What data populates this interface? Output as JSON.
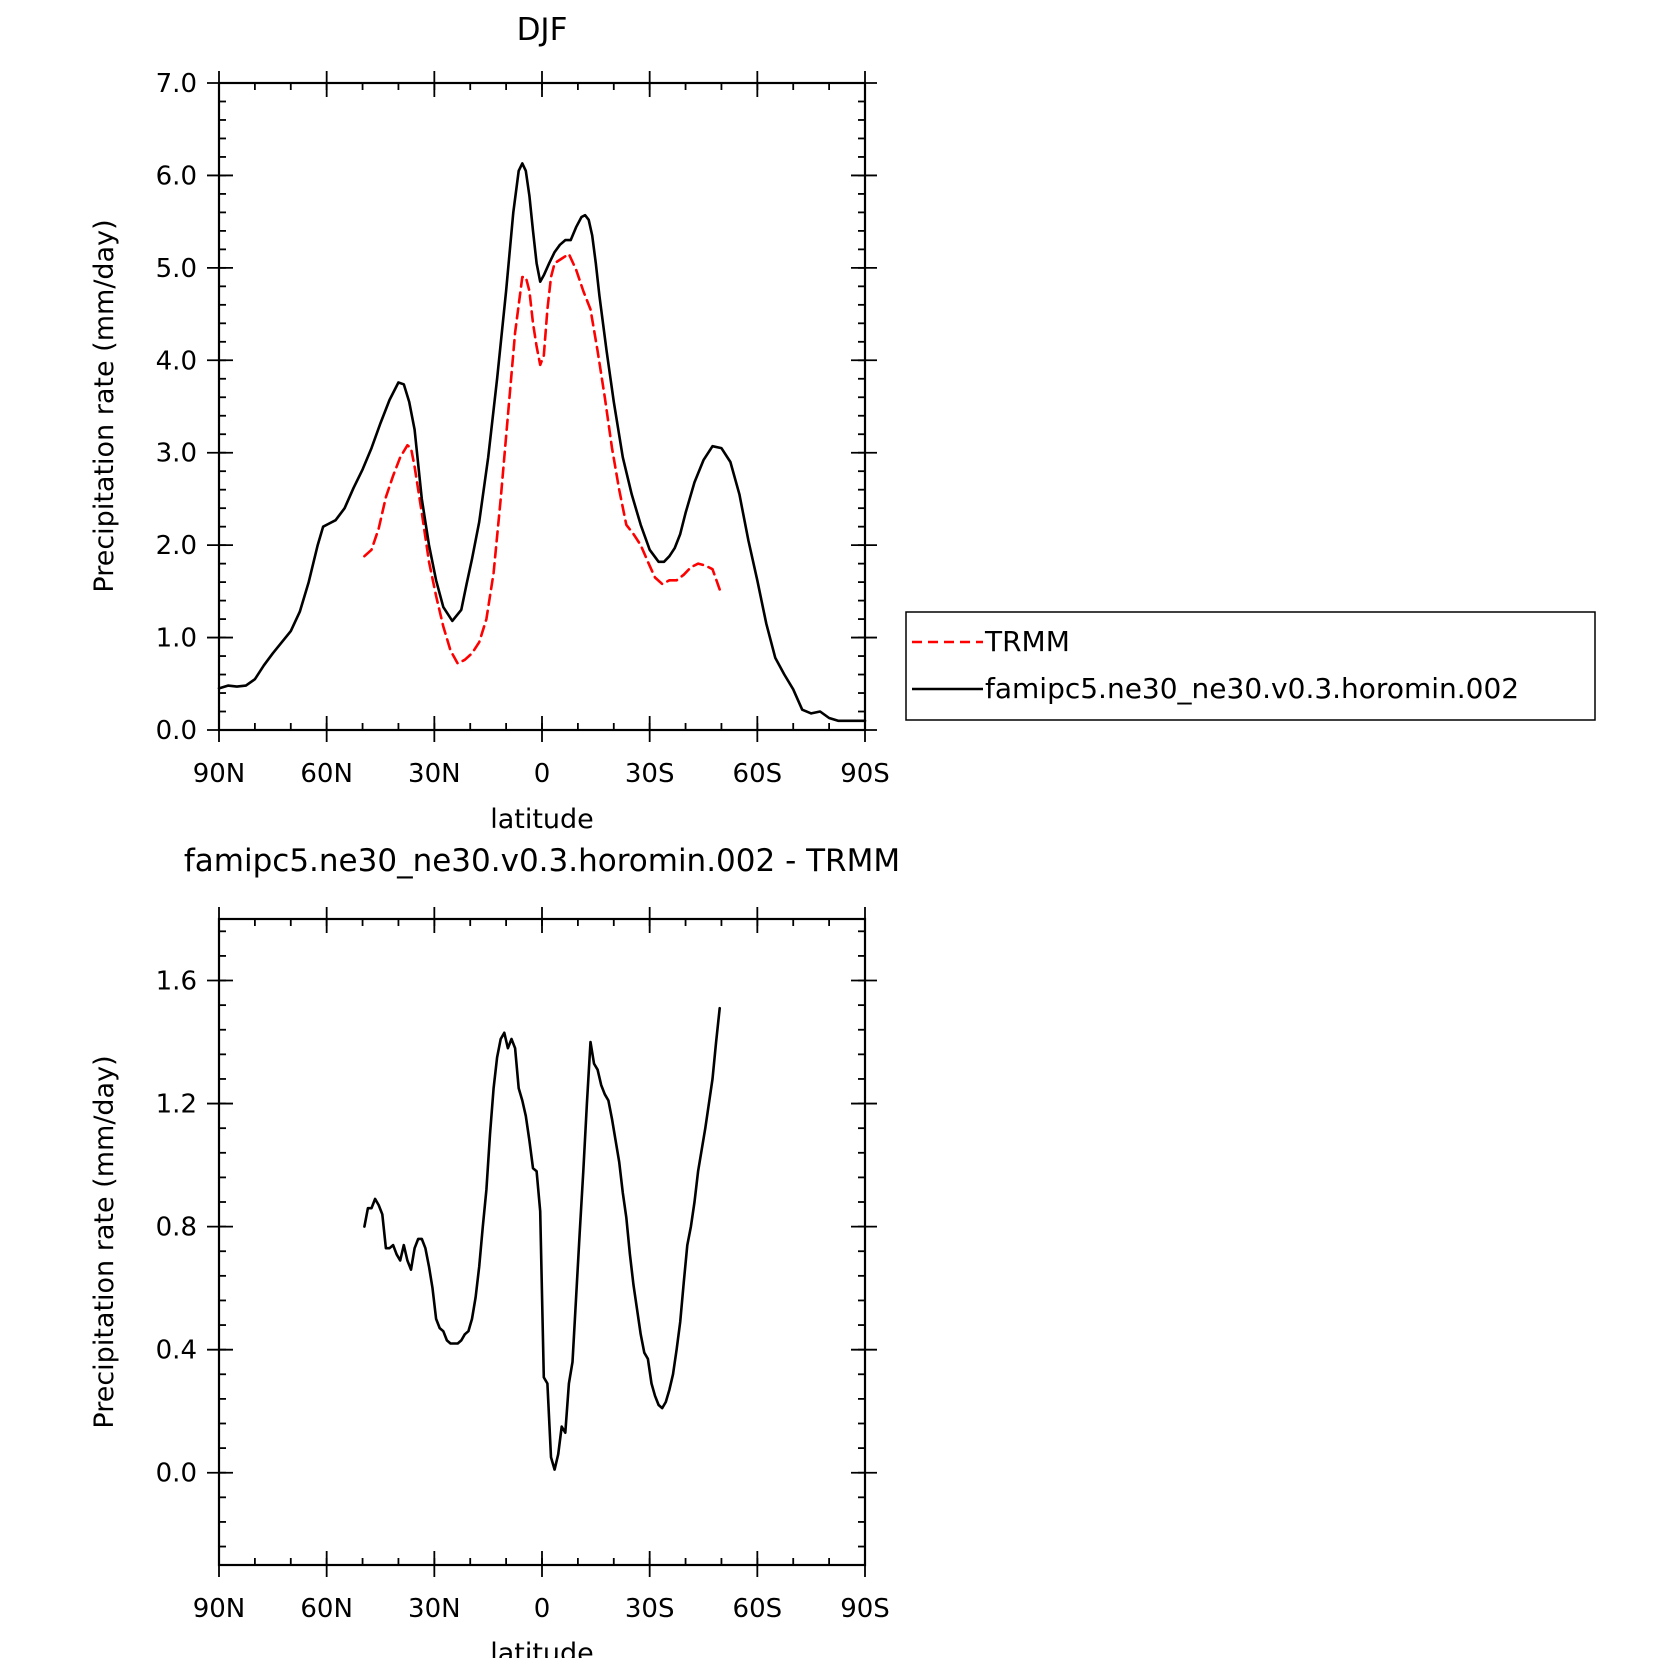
{
  "chart_data": [
    {
      "type": "line",
      "title": "DJF",
      "xlabel": "latitude",
      "ylabel": "Precipitation rate (mm/day)",
      "xlim": [
        -90,
        90
      ],
      "ylim": [
        0,
        7
      ],
      "xticks": [
        {
          "value": -90,
          "label": "90N"
        },
        {
          "value": -60,
          "label": "60N"
        },
        {
          "value": -30,
          "label": "30N"
        },
        {
          "value": 0,
          "label": "0"
        },
        {
          "value": 30,
          "label": "30S"
        },
        {
          "value": 60,
          "label": "60S"
        },
        {
          "value": 90,
          "label": "90S"
        }
      ],
      "yticks": [
        {
          "value": 0,
          "label": "0.0"
        },
        {
          "value": 1,
          "label": "1.0"
        },
        {
          "value": 2,
          "label": "2.0"
        },
        {
          "value": 3,
          "label": "3.0"
        },
        {
          "value": 4,
          "label": "4.0"
        },
        {
          "value": 5,
          "label": "5.0"
        },
        {
          "value": 6,
          "label": "6.0"
        },
        {
          "value": 7,
          "label": "7.0"
        }
      ],
      "legend_position": "right",
      "series": [
        {
          "name": "TRMM",
          "color": "#ff0000",
          "dash": true,
          "x": [
            -49.5,
            -47.5,
            -45.5,
            -43.5,
            -41.5,
            -39.5,
            -37.5,
            -36.5,
            -35.5,
            -33.5,
            -31.5,
            -29.5,
            -27.5,
            -25.5,
            -23.5,
            -21.5,
            -19.5,
            -17.5,
            -15.5,
            -13.5,
            -11.5,
            -9.5,
            -7.5,
            -5.5,
            -4.5,
            -3.5,
            -2.5,
            -1.5,
            -0.5,
            0.5,
            1.5,
            2.5,
            3.5,
            5.5,
            7.5,
            9.5,
            11.5,
            13.5,
            15.5,
            17.5,
            19.5,
            21.5,
            23.5,
            25.5,
            27.5,
            29.5,
            31.5,
            33.5,
            35.5,
            37.5,
            39.5,
            41.5,
            43.5,
            45.5,
            47.5,
            49.5
          ],
          "y": [
            1.88,
            1.95,
            2.18,
            2.52,
            2.75,
            2.95,
            3.08,
            3.05,
            2.85,
            2.35,
            1.82,
            1.45,
            1.12,
            0.86,
            0.72,
            0.76,
            0.83,
            0.95,
            1.2,
            1.7,
            2.5,
            3.4,
            4.3,
            4.9,
            4.9,
            4.75,
            4.4,
            4.15,
            3.95,
            4.05,
            4.55,
            4.9,
            5.05,
            5.1,
            5.15,
            4.98,
            4.75,
            4.55,
            4.1,
            3.6,
            3.05,
            2.6,
            2.22,
            2.12,
            2.0,
            1.82,
            1.65,
            1.58,
            1.62,
            1.62,
            1.68,
            1.76,
            1.8,
            1.78,
            1.74,
            1.52
          ]
        },
        {
          "name": "famipc5.ne30_ne30.v0.3.horomin.002",
          "color": "#000000",
          "dash": false,
          "x": [
            -90,
            -87.5,
            -85,
            -82.5,
            -80,
            -77.5,
            -75,
            -72.5,
            -70,
            -67.5,
            -65,
            -62.5,
            -61,
            -59.5,
            -57.5,
            -55,
            -52.5,
            -50,
            -47.5,
            -45,
            -42.5,
            -40,
            -38.5,
            -37,
            -35.5,
            -33.5,
            -31.5,
            -29.5,
            -27.5,
            -25,
            -22.5,
            -21,
            -19.5,
            -17.5,
            -15,
            -12.5,
            -10,
            -8,
            -6.5,
            -5.5,
            -4.5,
            -3.5,
            -2.5,
            -1.5,
            -0.5,
            0.5,
            2,
            3.5,
            5,
            6.5,
            8,
            9.5,
            11,
            12,
            13,
            14,
            15,
            16,
            17,
            18,
            20,
            22.5,
            25,
            27.5,
            30,
            32.5,
            34,
            35.5,
            37,
            38.5,
            40,
            42.5,
            45,
            47.5,
            50,
            52.5,
            55,
            57.5,
            60,
            62.5,
            65,
            67.5,
            70,
            72.5,
            75,
            77.5,
            80,
            82.5,
            85,
            87.5,
            90
          ],
          "y": [
            0.45,
            0.48,
            0.47,
            0.48,
            0.55,
            0.7,
            0.83,
            0.95,
            1.07,
            1.28,
            1.6,
            2.0,
            2.2,
            2.23,
            2.27,
            2.4,
            2.62,
            2.82,
            3.05,
            3.32,
            3.57,
            3.76,
            3.74,
            3.55,
            3.25,
            2.5,
            2.0,
            1.62,
            1.33,
            1.18,
            1.3,
            1.58,
            1.85,
            2.25,
            2.95,
            3.8,
            4.75,
            5.6,
            6.05,
            6.13,
            6.05,
            5.78,
            5.4,
            5.05,
            4.85,
            4.92,
            5.05,
            5.17,
            5.25,
            5.3,
            5.3,
            5.44,
            5.55,
            5.57,
            5.52,
            5.35,
            5.05,
            4.7,
            4.4,
            4.1,
            3.55,
            2.95,
            2.55,
            2.22,
            1.95,
            1.82,
            1.82,
            1.88,
            1.97,
            2.12,
            2.35,
            2.68,
            2.92,
            3.07,
            3.05,
            2.9,
            2.55,
            2.05,
            1.62,
            1.15,
            0.78,
            0.6,
            0.44,
            0.22,
            0.18,
            0.2,
            0.13,
            0.1,
            0.1,
            0.1,
            0.1
          ]
        }
      ]
    },
    {
      "type": "line",
      "title": "famipc5.ne30_ne30.v0.3.horomin.002 - TRMM",
      "xlabel": "latitude",
      "ylabel": "Precipitation rate (mm/day)",
      "xlim": [
        -90,
        90
      ],
      "ylim": [
        -0.3,
        1.8
      ],
      "xticks": [
        {
          "value": -90,
          "label": "90N"
        },
        {
          "value": -60,
          "label": "60N"
        },
        {
          "value": -30,
          "label": "30N"
        },
        {
          "value": 0,
          "label": "0"
        },
        {
          "value": 30,
          "label": "30S"
        },
        {
          "value": 60,
          "label": "60S"
        },
        {
          "value": 90,
          "label": "90S"
        }
      ],
      "yticks": [
        {
          "value": 0,
          "label": "0.0"
        },
        {
          "value": 0.4,
          "label": "0.4"
        },
        {
          "value": 0.8,
          "label": "0.8"
        },
        {
          "value": 1.2,
          "label": "1.2"
        },
        {
          "value": 1.6,
          "label": "1.6"
        }
      ],
      "series": [
        {
          "color": "#000000",
          "dash": false,
          "x": [
            -49.5,
            -48.5,
            -47.5,
            -46.5,
            -45.5,
            -44.5,
            -43.5,
            -42.5,
            -41.5,
            -40.5,
            -39.5,
            -38.5,
            -37.5,
            -36.5,
            -35.5,
            -34.5,
            -33.5,
            -32.5,
            -31.5,
            -30.5,
            -29.5,
            -28.5,
            -27.5,
            -26.5,
            -25.5,
            -24.5,
            -23.5,
            -22.5,
            -21.5,
            -20.5,
            -19.5,
            -18.5,
            -17.5,
            -16.5,
            -15.5,
            -14.5,
            -13.5,
            -12.5,
            -11.5,
            -10.5,
            -9.5,
            -8.5,
            -7.5,
            -6.5,
            -5.5,
            -4.5,
            -3.5,
            -2.5,
            -1.5,
            -0.5,
            0.5,
            1.5,
            2.5,
            3.5,
            4.5,
            5.5,
            6.5,
            7.5,
            8.5,
            9.5,
            10.5,
            11.5,
            12.5,
            13.5,
            14.5,
            15.5,
            16.5,
            17.5,
            18.5,
            19.5,
            20.5,
            21.5,
            22.5,
            23.5,
            24.5,
            25.5,
            26.5,
            27.5,
            28.5,
            29.5,
            30.5,
            31.5,
            32.5,
            33.5,
            34.5,
            35.5,
            36.5,
            37.5,
            38.5,
            39.5,
            40.5,
            41.5,
            42.5,
            43.5,
            44.5,
            45.5,
            46.5,
            47.5,
            48.5,
            49.5
          ],
          "y": [
            0.8,
            0.86,
            0.86,
            0.89,
            0.87,
            0.84,
            0.73,
            0.73,
            0.74,
            0.71,
            0.69,
            0.74,
            0.69,
            0.66,
            0.73,
            0.76,
            0.76,
            0.73,
            0.67,
            0.6,
            0.5,
            0.47,
            0.46,
            0.43,
            0.42,
            0.42,
            0.42,
            0.43,
            0.45,
            0.46,
            0.5,
            0.57,
            0.67,
            0.8,
            0.92,
            1.1,
            1.25,
            1.35,
            1.41,
            1.43,
            1.38,
            1.41,
            1.38,
            1.25,
            1.21,
            1.16,
            1.08,
            0.99,
            0.98,
            0.85,
            0.31,
            0.29,
            0.05,
            0.01,
            0.06,
            0.15,
            0.13,
            0.29,
            0.36,
            0.57,
            0.78,
            0.98,
            1.2,
            1.4,
            1.33,
            1.31,
            1.26,
            1.23,
            1.21,
            1.15,
            1.08,
            1.01,
            0.91,
            0.83,
            0.71,
            0.61,
            0.53,
            0.45,
            0.39,
            0.37,
            0.29,
            0.25,
            0.22,
            0.21,
            0.23,
            0.27,
            0.32,
            0.4,
            0.49,
            0.62,
            0.74,
            0.8,
            0.88,
            0.98,
            1.05,
            1.12,
            1.2,
            1.28,
            1.4,
            1.51
          ]
        }
      ]
    }
  ]
}
